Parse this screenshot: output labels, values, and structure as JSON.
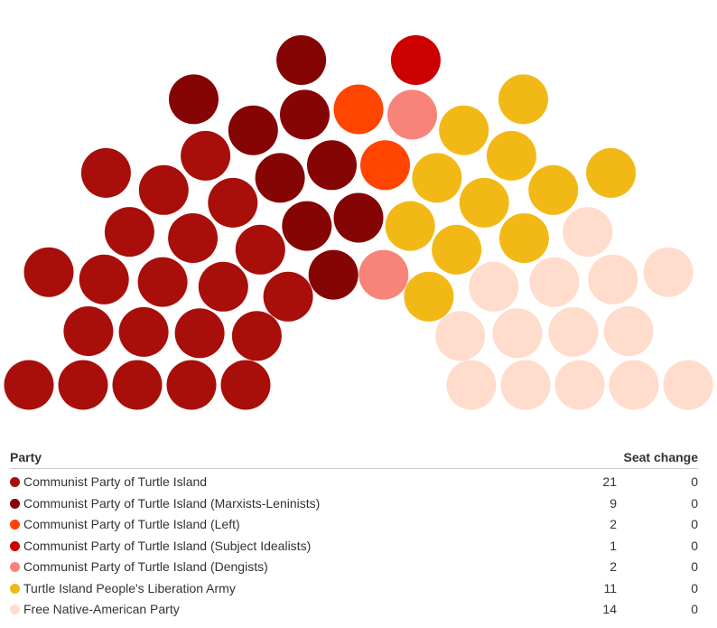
{
  "chart_data": {
    "type": "parliament",
    "total_seats": 60,
    "parties": [
      {
        "name": "Communist Party of Turtle Island",
        "seats": 21,
        "seat_change": "0",
        "color": "#a80f0a"
      },
      {
        "name": "Communist Party of Turtle Island (Marxists-Leninists)",
        "seats": 9,
        "seat_change": "0",
        "color": "#850404"
      },
      {
        "name": "Communist Party of Turtle Island (Left)",
        "seats": 2,
        "seat_change": "0",
        "color": "#ff4500"
      },
      {
        "name": "Communist Party of Turtle Island (Subject Idealists)",
        "seats": 1,
        "seat_change": "0",
        "color": "#cc0000"
      },
      {
        "name": "Communist Party of Turtle Island (Dengists)",
        "seats": 2,
        "seat_change": "0",
        "color": "#f88379"
      },
      {
        "name": "Turtle Island People's Liberation Army",
        "seats": 11,
        "seat_change": "0",
        "color": "#f2b916"
      },
      {
        "name": "Free Native-American Party",
        "seats": 14,
        "seat_change": "0",
        "color": "#ffdccb"
      }
    ],
    "seat_sequence": [
      0,
      0,
      0,
      0,
      0,
      0,
      0,
      0,
      0,
      0,
      0,
      0,
      0,
      0,
      0,
      0,
      0,
      0,
      0,
      0,
      0,
      1,
      1,
      1,
      1,
      1,
      1,
      1,
      1,
      1,
      2,
      2,
      3,
      4,
      4,
      5,
      5,
      5,
      5,
      5,
      5,
      5,
      5,
      5,
      5,
      5,
      6,
      6,
      6,
      6,
      6,
      6,
      6,
      6,
      6,
      6,
      6,
      6,
      6,
      6
    ]
  },
  "table": {
    "party_header": "Party",
    "change_header": "Seat change"
  }
}
